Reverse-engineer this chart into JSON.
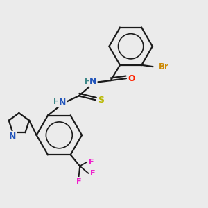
{
  "bg_color": "#ebebeb",
  "bond_color": "#1a1a1a",
  "atom_colors": {
    "Br": "#cc8800",
    "O": "#ff2200",
    "N": "#2255bb",
    "S": "#b8b800",
    "F": "#ee22cc",
    "H": "#3d8888",
    "C": "#1a1a1a"
  }
}
